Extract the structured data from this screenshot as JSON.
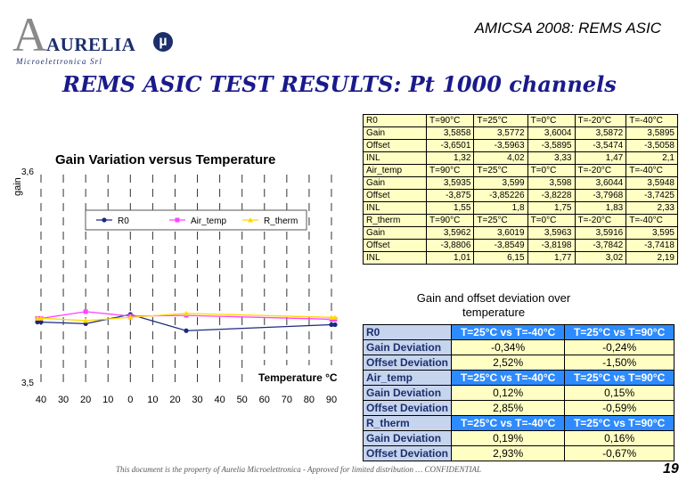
{
  "logo": {
    "letter": "A",
    "name": "AURELIA",
    "mu": "µ",
    "subtitle": "Microelettronica Srl"
  },
  "header": {
    "conference": "AMICSA 2008: REMS ASIC"
  },
  "title": "REMS ASIC TEST RESULTS: Pt 1000 channels",
  "chart": {
    "title": "Gain Variation versus Temperature",
    "ylabel": "gain",
    "xlabel": "Temperature °C",
    "y_top_label": "3,6",
    "y_bottom_label": "3,5"
  },
  "chart_data": {
    "type": "line",
    "title": "Gain Variation versus Temperature",
    "xlabel": "Temperature °C",
    "ylabel": "gain",
    "x": [
      40,
      30,
      20,
      10,
      0,
      10,
      20,
      30,
      40,
      50,
      60,
      70,
      80,
      90
    ],
    "x_tick_labels": [
      "40",
      "30",
      "20",
      "10",
      "0",
      "10",
      "20",
      "30",
      "40",
      "50",
      "60",
      "70",
      "80",
      "90"
    ],
    "ylim": [
      3.5,
      3.8
    ],
    "legend_position": "top",
    "grid": "vertical dashed",
    "series": [
      {
        "name": "R0",
        "x": [
          -40,
          -20,
          0,
          25,
          90
        ],
        "values": [
          3.5895,
          3.5872,
          3.6004,
          3.5772,
          3.5858
        ],
        "color": "#1a2a80"
      },
      {
        "name": "Air_temp",
        "x": [
          -40,
          -20,
          0,
          25,
          90
        ],
        "values": [
          3.5948,
          3.6044,
          3.598,
          3.599,
          3.5935
        ],
        "color": "#ff44ff"
      },
      {
        "name": "R_therm",
        "x": [
          -40,
          -20,
          0,
          25,
          90
        ],
        "values": [
          3.595,
          3.5916,
          3.5963,
          3.6019,
          3.5962
        ],
        "color": "#ffd800"
      }
    ]
  },
  "table1": {
    "rows": [
      [
        "R0",
        "T=90°C",
        "T=25°C",
        "T=0°C",
        "T=-20°C",
        "T=-40°C"
      ],
      [
        "Gain",
        "3,5858",
        "3,5772",
        "3,6004",
        "3,5872",
        "3,5895"
      ],
      [
        "Offset",
        "-3,6501",
        "-3,5963",
        "-3,5895",
        "-3,5474",
        "-3,5058"
      ],
      [
        "INL",
        "1,32",
        "4,02",
        "3,33",
        "1,47",
        "2,1"
      ],
      [
        "Air_temp",
        "T=90°C",
        "T=25°C",
        "T=0°C",
        "T=-20°C",
        "T=-40°C"
      ],
      [
        "Gain",
        "3,5935",
        "3,599",
        "3,598",
        "3,6044",
        "3,5948"
      ],
      [
        "Offset",
        "-3,875",
        "-3,85226",
        "-3,8228",
        "-3,7968",
        "-3,7425"
      ],
      [
        "INL",
        "1,55",
        "1,8",
        "1,75",
        "1,83",
        "2,33"
      ],
      [
        "R_therm",
        "T=90°C",
        "T=25°C",
        "T=0°C",
        "T=-20°C",
        "T=-40°C"
      ],
      [
        "Gain",
        "3,5962",
        "3,6019",
        "3,5963",
        "3,5916",
        "3,595"
      ],
      [
        "Offset",
        "-3,8806",
        "-3,8549",
        "-3,8198",
        "-3,7842",
        "-3,7418"
      ],
      [
        "INL",
        "1,01",
        "6,15",
        "1,77",
        "3,02",
        "2,19"
      ]
    ]
  },
  "caption": "Gain and offset deviation over temperature",
  "table2": {
    "rows": [
      [
        "R0",
        "T=25°C vs T=-40°C",
        "T=25°C vs T=90°C"
      ],
      [
        "Gain Deviation",
        "-0,34%",
        "-0,24%"
      ],
      [
        "Offset Deviation",
        "2,52%",
        "-1,50%"
      ],
      [
        "Air_temp",
        "T=25°C vs T=-40°C",
        "T=25°C vs T=90°C"
      ],
      [
        "Gain Deviation",
        "0,12%",
        "0,15%"
      ],
      [
        "Offset Deviation",
        "2,85%",
        "-0,59%"
      ],
      [
        "R_therm",
        "T=25°C vs T=-40°C",
        "T=25°C vs T=90°C"
      ],
      [
        "Gain Deviation",
        "0,19%",
        "0,16%"
      ],
      [
        "Offset Deviation",
        "2,93%",
        "-0,67%"
      ]
    ]
  },
  "footer": "This document is the property of Aurelia Microelettronica - Approved for limited distribution … CONFIDENTIAL",
  "page_number": "19"
}
